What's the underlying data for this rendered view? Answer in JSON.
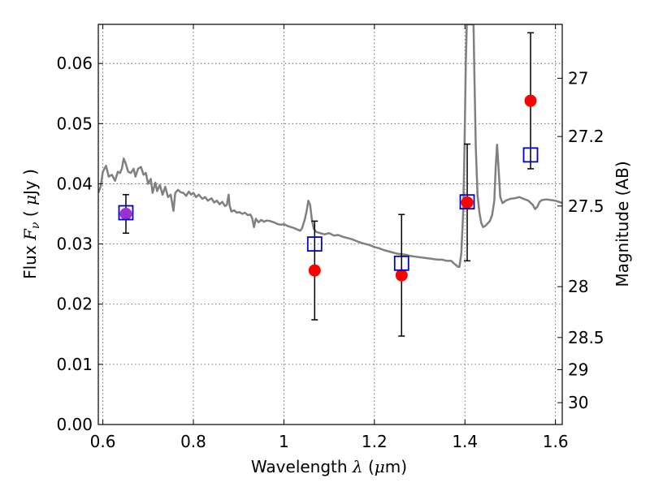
{
  "chart_data": {
    "type": "scatter",
    "xlabel": "Wavelength  λ (μm)",
    "ylabel": "Flux  F_ν ( μJy )",
    "y2label": "Magnitude (AB)",
    "xlim": [
      0.59,
      1.615
    ],
    "ylim": [
      0.0,
      0.0665
    ],
    "grid": true,
    "x_ticks": [
      0.6,
      0.8,
      1.0,
      1.2,
      1.4,
      1.6
    ],
    "x_tick_labels": [
      "0.6",
      "0.8",
      "1",
      "1.2",
      "1.4",
      "1.6"
    ],
    "y_ticks": [
      0.0,
      0.01,
      0.02,
      0.03,
      0.04,
      0.05,
      0.06
    ],
    "y_tick_labels": [
      "0.00",
      "0.01",
      "0.02",
      "0.03",
      "0.04",
      "0.05",
      "0.06"
    ],
    "mag_ticks": [
      {
        "label": "27",
        "mag": 27.0
      },
      {
        "label": "27.2",
        "mag": 27.2
      },
      {
        "label": "27.5",
        "mag": 27.5
      },
      {
        "label": "28",
        "mag": 28.0
      },
      {
        "label": "28.5",
        "mag": 28.5
      },
      {
        "label": "29",
        "mag": 29.0
      },
      {
        "label": "30",
        "mag": 30.0
      }
    ],
    "series": [
      {
        "kind": "line",
        "color": "#808080",
        "points": [
          [
            0.59,
            0.0385
          ],
          [
            0.595,
            0.0395
          ],
          [
            0.6,
            0.042
          ],
          [
            0.607,
            0.043
          ],
          [
            0.613,
            0.0412
          ],
          [
            0.62,
            0.0415
          ],
          [
            0.627,
            0.0405
          ],
          [
            0.633,
            0.042
          ],
          [
            0.638,
            0.0418
          ],
          [
            0.642,
            0.0425
          ],
          [
            0.646,
            0.0442
          ],
          [
            0.65,
            0.0435
          ],
          [
            0.656,
            0.042
          ],
          [
            0.662,
            0.0418
          ],
          [
            0.668,
            0.0425
          ],
          [
            0.672,
            0.0412
          ],
          [
            0.678,
            0.0425
          ],
          [
            0.684,
            0.0428
          ],
          [
            0.69,
            0.0415
          ],
          [
            0.695,
            0.0418
          ],
          [
            0.7,
            0.04
          ],
          [
            0.706,
            0.0408
          ],
          [
            0.71,
            0.0385
          ],
          [
            0.716,
            0.0402
          ],
          [
            0.72,
            0.0388
          ],
          [
            0.726,
            0.0398
          ],
          [
            0.732,
            0.0382
          ],
          [
            0.738,
            0.0395
          ],
          [
            0.744,
            0.0378
          ],
          [
            0.75,
            0.0382
          ],
          [
            0.756,
            0.0355
          ],
          [
            0.76,
            0.0385
          ],
          [
            0.766,
            0.039
          ],
          [
            0.772,
            0.0386
          ],
          [
            0.778,
            0.0385
          ],
          [
            0.784,
            0.038
          ],
          [
            0.79,
            0.0387
          ],
          [
            0.795,
            0.0382
          ],
          [
            0.8,
            0.0385
          ],
          [
            0.806,
            0.0378
          ],
          [
            0.812,
            0.0382
          ],
          [
            0.82,
            0.0375
          ],
          [
            0.826,
            0.0378
          ],
          [
            0.832,
            0.0372
          ],
          [
            0.84,
            0.0376
          ],
          [
            0.846,
            0.0369
          ],
          [
            0.852,
            0.0372
          ],
          [
            0.858,
            0.0366
          ],
          [
            0.864,
            0.037
          ],
          [
            0.87,
            0.0363
          ],
          [
            0.874,
            0.0365
          ],
          [
            0.878,
            0.0382
          ],
          [
            0.88,
            0.0364
          ],
          [
            0.884,
            0.0354
          ],
          [
            0.89,
            0.0356
          ],
          [
            0.896,
            0.0352
          ],
          [
            0.902,
            0.0353
          ],
          [
            0.908,
            0.035
          ],
          [
            0.914,
            0.0352
          ],
          [
            0.92,
            0.0348
          ],
          [
            0.926,
            0.0349
          ],
          [
            0.93,
            0.0343
          ],
          [
            0.934,
            0.0328
          ],
          [
            0.938,
            0.0342
          ],
          [
            0.944,
            0.0336
          ],
          [
            0.95,
            0.034
          ],
          [
            0.956,
            0.0337
          ],
          [
            0.962,
            0.0339
          ],
          [
            0.97,
            0.0338
          ],
          [
            0.978,
            0.0336
          ],
          [
            0.986,
            0.0333
          ],
          [
            0.994,
            0.0332
          ],
          [
            1.0,
            0.0333
          ],
          [
            1.008,
            0.033
          ],
          [
            1.016,
            0.0328
          ],
          [
            1.024,
            0.0326
          ],
          [
            1.03,
            0.0324
          ],
          [
            1.036,
            0.0322
          ],
          [
            1.04,
            0.0326
          ],
          [
            1.046,
            0.034
          ],
          [
            1.05,
            0.0354
          ],
          [
            1.054,
            0.0372
          ],
          [
            1.058,
            0.0365
          ],
          [
            1.062,
            0.034
          ],
          [
            1.066,
            0.0325
          ],
          [
            1.072,
            0.032
          ],
          [
            1.08,
            0.0318
          ],
          [
            1.09,
            0.0316
          ],
          [
            1.1,
            0.0318
          ],
          [
            1.11,
            0.0314
          ],
          [
            1.12,
            0.0315
          ],
          [
            1.13,
            0.0312
          ],
          [
            1.14,
            0.031
          ],
          [
            1.15,
            0.0308
          ],
          [
            1.16,
            0.0305
          ],
          [
            1.17,
            0.0302
          ],
          [
            1.18,
            0.03
          ],
          [
            1.19,
            0.0298
          ],
          [
            1.2,
            0.0295
          ],
          [
            1.21,
            0.0293
          ],
          [
            1.22,
            0.029
          ],
          [
            1.23,
            0.0288
          ],
          [
            1.24,
            0.0286
          ],
          [
            1.25,
            0.0284
          ],
          [
            1.26,
            0.0283
          ],
          [
            1.27,
            0.0282
          ],
          [
            1.28,
            0.028
          ],
          [
            1.29,
            0.0279
          ],
          [
            1.3,
            0.0278
          ],
          [
            1.31,
            0.0277
          ],
          [
            1.32,
            0.0276
          ],
          [
            1.33,
            0.0275
          ],
          [
            1.34,
            0.0274
          ],
          [
            1.35,
            0.0274
          ],
          [
            1.36,
            0.0272
          ],
          [
            1.37,
            0.0272
          ],
          [
            1.375,
            0.0268
          ],
          [
            1.38,
            0.0265
          ],
          [
            1.385,
            0.0262
          ],
          [
            1.388,
            0.0262
          ],
          [
            1.392,
            0.0285
          ],
          [
            1.396,
            0.035
          ],
          [
            1.399,
            0.046
          ],
          [
            1.402,
            0.06
          ],
          [
            1.404,
            0.0665
          ],
          [
            1.419,
            0.0665
          ],
          [
            1.421,
            0.058
          ],
          [
            1.424,
            0.046
          ],
          [
            1.428,
            0.038
          ],
          [
            1.432,
            0.0352
          ],
          [
            1.436,
            0.0335
          ],
          [
            1.44,
            0.0328
          ],
          [
            1.445,
            0.033
          ],
          [
            1.45,
            0.0334
          ],
          [
            1.455,
            0.0338
          ],
          [
            1.46,
            0.0348
          ],
          [
            1.465,
            0.0372
          ],
          [
            1.468,
            0.0428
          ],
          [
            1.471,
            0.0465
          ],
          [
            1.474,
            0.0428
          ],
          [
            1.478,
            0.0378
          ],
          [
            1.483,
            0.0368
          ],
          [
            1.49,
            0.0372
          ],
          [
            1.5,
            0.0375
          ],
          [
            1.51,
            0.0376
          ],
          [
            1.52,
            0.0378
          ],
          [
            1.53,
            0.0375
          ],
          [
            1.54,
            0.0372
          ],
          [
            1.55,
            0.0365
          ],
          [
            1.555,
            0.0358
          ],
          [
            1.56,
            0.0362
          ],
          [
            1.565,
            0.037
          ],
          [
            1.57,
            0.0373
          ],
          [
            1.58,
            0.0374
          ],
          [
            1.59,
            0.0373
          ],
          [
            1.6,
            0.0372
          ],
          [
            1.608,
            0.037
          ],
          [
            1.615,
            0.0368
          ]
        ]
      },
      {
        "kind": "scatter",
        "marker": "filled-circle",
        "color": "#ff0000",
        "points": [
          {
            "x": 0.651,
            "y": 0.035,
            "yerr": 0.0032
          },
          {
            "x": 1.068,
            "y": 0.0256,
            "yerr": 0.0082
          },
          {
            "x": 1.26,
            "y": 0.0248,
            "yerr": 0.0101
          },
          {
            "x": 1.405,
            "y": 0.0369,
            "yerr": 0.0097
          },
          {
            "x": 1.545,
            "y": 0.0538,
            "yerr": 0.0113
          }
        ]
      },
      {
        "kind": "scatter",
        "marker": "open-square",
        "color": "#0000cc",
        "points": [
          {
            "x": 0.651,
            "y": 0.0352
          },
          {
            "x": 1.068,
            "y": 0.03
          },
          {
            "x": 1.26,
            "y": 0.0268
          },
          {
            "x": 1.405,
            "y": 0.037
          },
          {
            "x": 1.545,
            "y": 0.0448
          }
        ]
      }
    ],
    "overlap_marker_color": "#9b30d0"
  }
}
